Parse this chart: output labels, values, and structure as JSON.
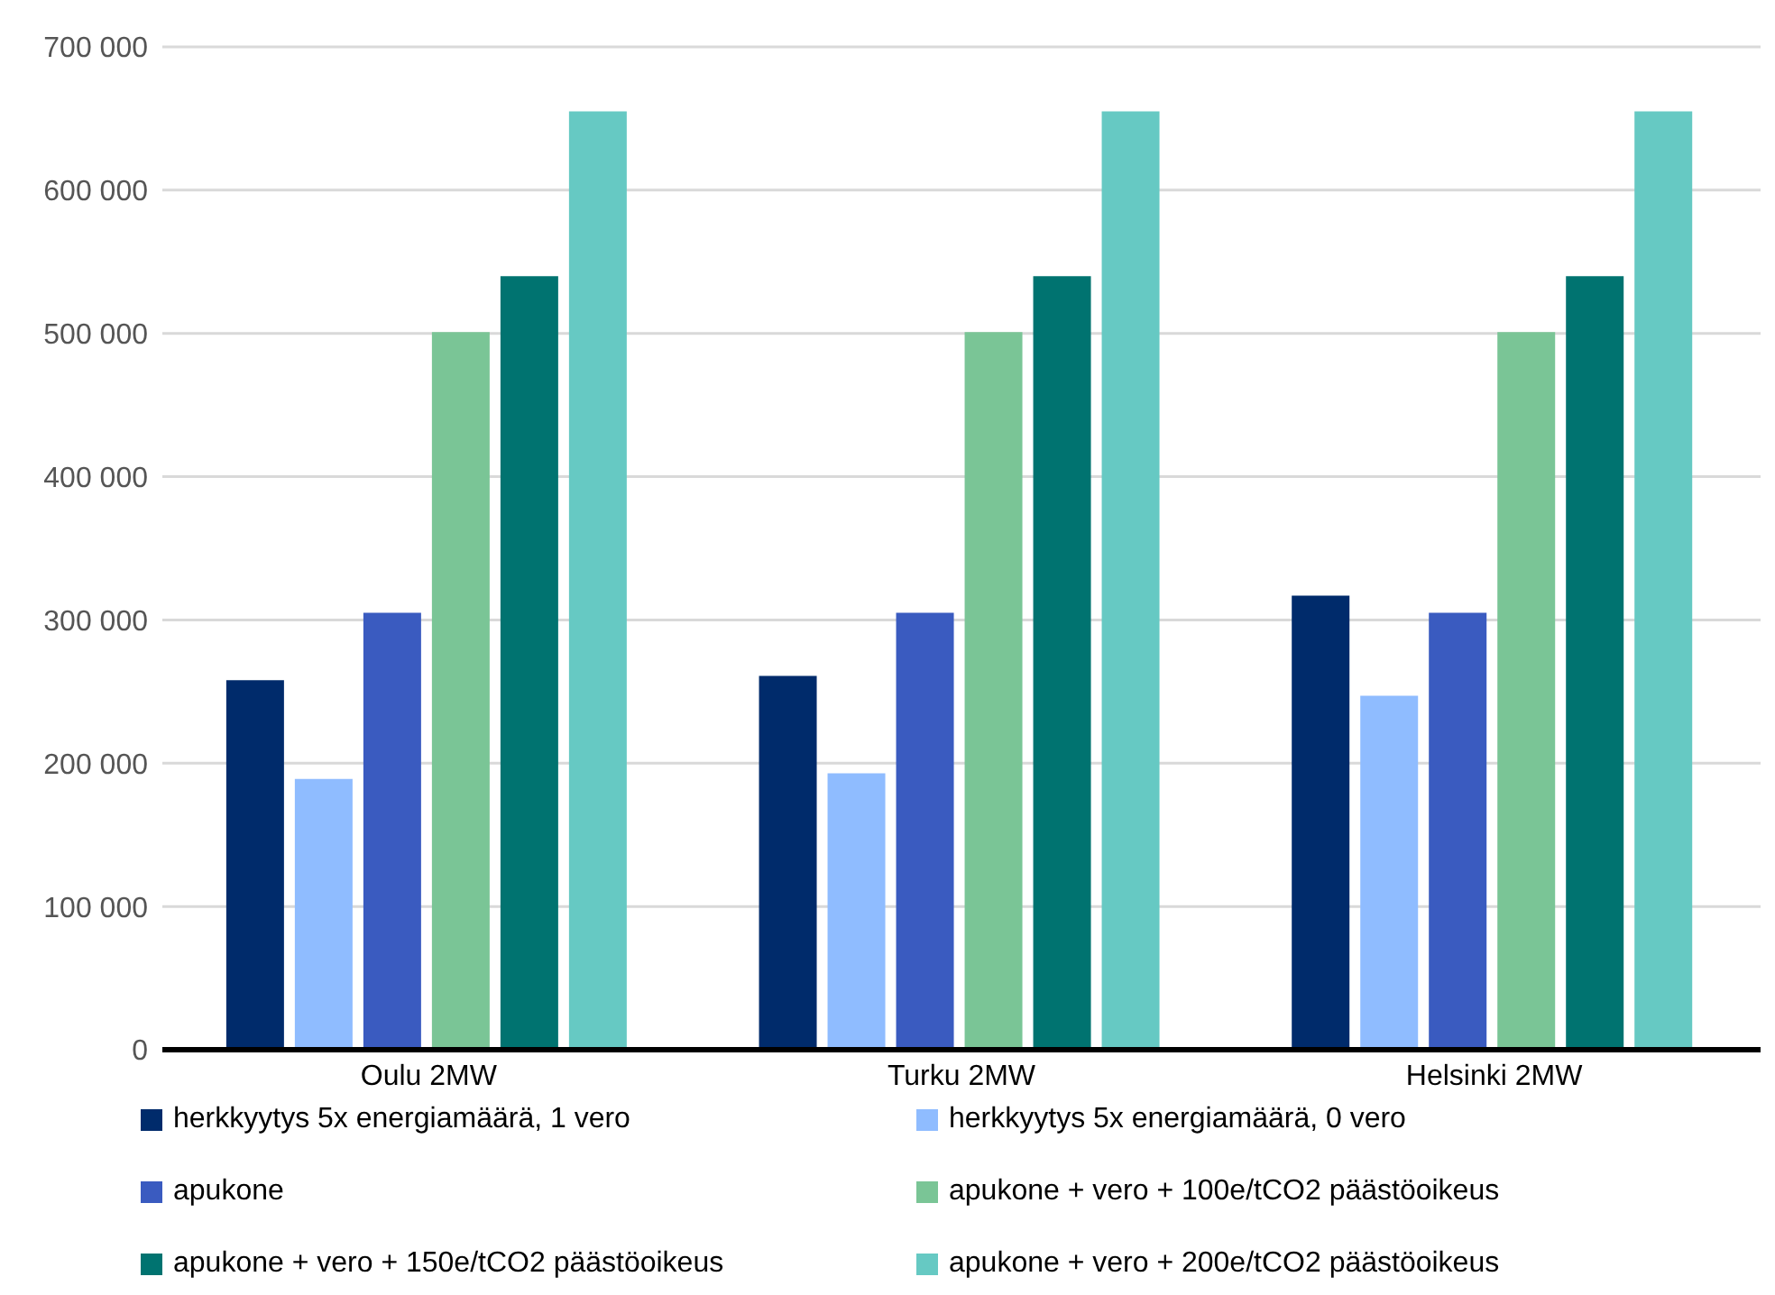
{
  "chart_data": {
    "type": "bar",
    "categories": [
      "Oulu 2MW",
      "Turku 2MW",
      "Helsinki 2MW"
    ],
    "series": [
      {
        "name": "herkkyytys 5x energiamäärä, 1 vero",
        "color": "#002b6b",
        "values": [
          258000,
          261000,
          317000
        ]
      },
      {
        "name": "herkkyytys 5x energiamäärä, 0 vero",
        "color": "#8fbcff",
        "values": [
          189000,
          193000,
          247000
        ]
      },
      {
        "name": "apukone",
        "color": "#3a5bc0",
        "values": [
          305000,
          305000,
          305000
        ]
      },
      {
        "name": "apukone + vero + 100e/tCO2 päästöoikeus",
        "color": "#7ac596",
        "values": [
          501000,
          501000,
          501000
        ]
      },
      {
        "name": "apukone + vero + 150e/tCO2 päästöoikeus",
        "color": "#007370",
        "values": [
          540000,
          540000,
          540000
        ]
      },
      {
        "name": "apukone + vero + 200e/tCO2 päästöoikeus",
        "color": "#66c9c3",
        "values": [
          655000,
          655000,
          655000
        ]
      }
    ],
    "ylim": [
      0,
      700000
    ],
    "yticks": [
      {
        "value": 0,
        "label": "0"
      },
      {
        "value": 100000,
        "label": "100 000"
      },
      {
        "value": 200000,
        "label": "200 000"
      },
      {
        "value": 300000,
        "label": "300 000"
      },
      {
        "value": 400000,
        "label": "400 000"
      },
      {
        "value": 500000,
        "label": "500 000"
      },
      {
        "value": 600000,
        "label": "600 000"
      },
      {
        "value": 700000,
        "label": "700 000"
      }
    ],
    "grid": "y",
    "legend": "bottom"
  }
}
